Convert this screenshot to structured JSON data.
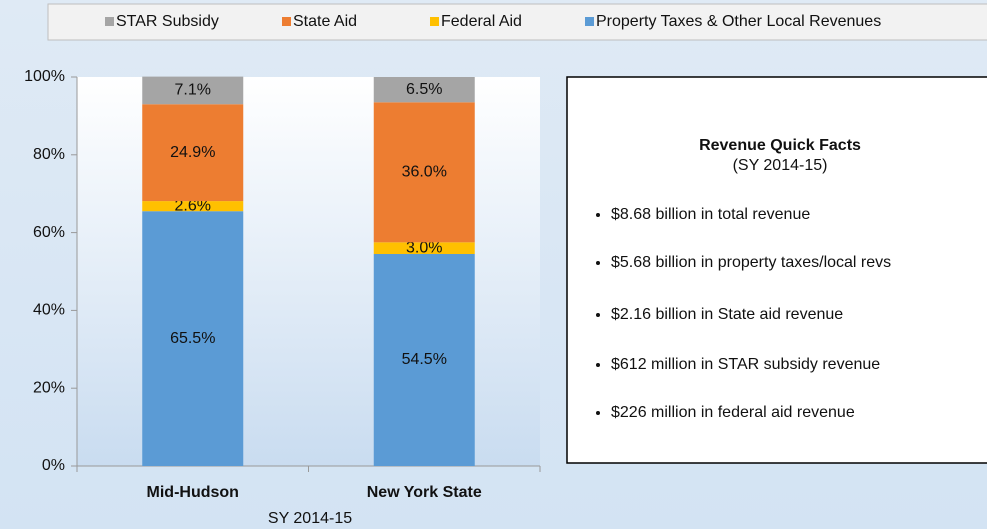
{
  "chart_data": {
    "type": "bar",
    "stacked": true,
    "categories": [
      "Mid-Hudson",
      "New York State"
    ],
    "xlabel": "SY 2014-15",
    "series": [
      {
        "name": "STAR Subsidy",
        "color": "#a5a5a5",
        "values": [
          7.1,
          6.5
        ],
        "value_labels": [
          "7.1%",
          "6.5%"
        ]
      },
      {
        "name": "State Aid",
        "color": "#ed7d31",
        "values": [
          24.9,
          36.0
        ],
        "value_labels": [
          "24.9%",
          "36.0%"
        ]
      },
      {
        "name": "Federal Aid",
        "color": "#ffc000",
        "values": [
          2.6,
          3.0
        ],
        "value_labels": [
          "2.6%",
          "3.0%"
        ]
      },
      {
        "name": "Property Taxes & Other Local Revenues",
        "color": "#5b9bd5",
        "values": [
          65.5,
          54.5
        ],
        "value_labels": [
          "65.5%",
          "54.5%"
        ]
      }
    ],
    "ylim": [
      0,
      100
    ],
    "yticks": [
      {
        "value": 0,
        "label": "0%"
      },
      {
        "value": 20,
        "label": "20%"
      },
      {
        "value": 40,
        "label": "40%"
      },
      {
        "value": 60,
        "label": "60%"
      },
      {
        "value": 80,
        "label": "80%"
      },
      {
        "value": 100,
        "label": "100%"
      }
    ],
    "legend": "top"
  },
  "quick_facts": {
    "title": "Revenue Quick Facts",
    "subtitle": "(SY 2014-15)",
    "items": [
      "$8.68 billion in total revenue",
      "$5.68 billion in property taxes/local revs",
      "$2.16 billion in State aid revenue",
      "$612 million in STAR subsidy revenue",
      "$226 million in federal aid revenue"
    ]
  }
}
